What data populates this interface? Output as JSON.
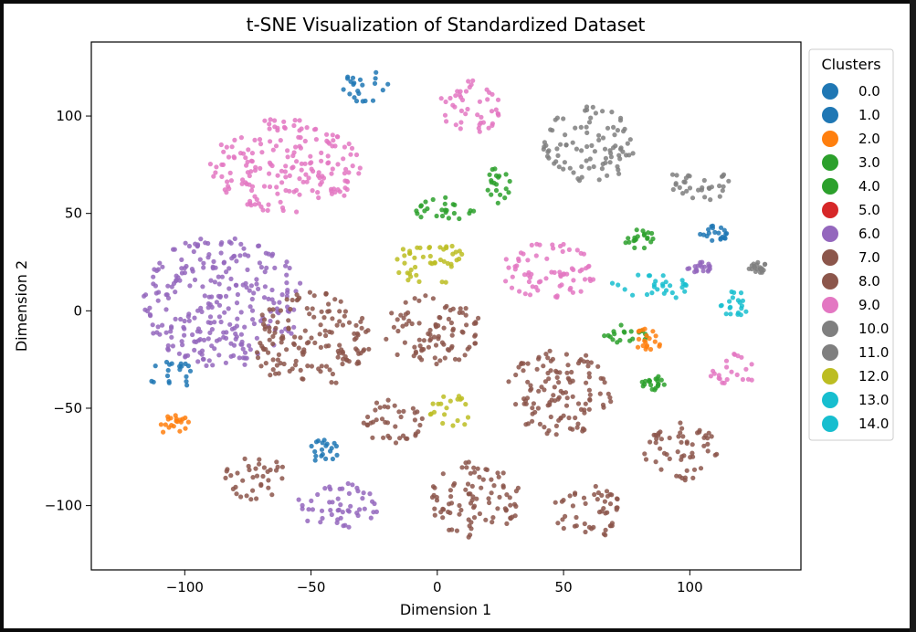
{
  "chart_data": {
    "type": "scatter",
    "title": "t-SNE Visualization of Standardized Dataset",
    "xlabel": "Dimension 1",
    "ylabel": "Dimension 2",
    "xlim": [
      -137,
      144
    ],
    "ylim": [
      -133,
      138
    ],
    "xticks": [
      -100,
      -50,
      0,
      50,
      100
    ],
    "yticks": [
      -100,
      -50,
      0,
      50,
      100
    ],
    "xtick_labels": [
      "−100",
      "−50",
      "0",
      "50",
      "100"
    ],
    "ytick_labels": [
      "−100",
      "−50",
      "0",
      "50",
      "100"
    ],
    "grid": false,
    "legend": {
      "title": "Clusters",
      "placement": "outside-right",
      "entries": [
        {
          "label": "0.0",
          "color": "#1f77b4"
        },
        {
          "label": "1.0",
          "color": "#1f77b4"
        },
        {
          "label": "2.0",
          "color": "#ff7f0e"
        },
        {
          "label": "3.0",
          "color": "#2ca02c"
        },
        {
          "label": "4.0",
          "color": "#2ca02c"
        },
        {
          "label": "5.0",
          "color": "#d62728"
        },
        {
          "label": "6.0",
          "color": "#9467bd"
        },
        {
          "label": "7.0",
          "color": "#8c564b"
        },
        {
          "label": "8.0",
          "color": "#8c564b"
        },
        {
          "label": "9.0",
          "color": "#e377c2"
        },
        {
          "label": "10.0",
          "color": "#7f7f7f"
        },
        {
          "label": "11.0",
          "color": "#7f7f7f"
        },
        {
          "label": "12.0",
          "color": "#bcbd22"
        },
        {
          "label": "13.0",
          "color": "#17becf"
        },
        {
          "label": "14.0",
          "color": "#17becf"
        }
      ]
    },
    "clusters": [
      {
        "label": "6.0",
        "center": [
          -85,
          5
        ],
        "spread": [
          32,
          34
        ],
        "color": "#9467bd"
      },
      {
        "label": "9.0",
        "center": [
          -60,
          75
        ],
        "spread": [
          30,
          25
        ],
        "color": "#e377c2"
      },
      {
        "label": "8.0",
        "center": [
          -50,
          -15
        ],
        "spread": [
          24,
          25
        ],
        "color": "#8c564b"
      },
      {
        "label": "7.0",
        "center": [
          -2,
          -10
        ],
        "spread": [
          20,
          18
        ],
        "color": "#8c564b"
      },
      {
        "label": "7.0",
        "center": [
          48,
          -42
        ],
        "spread": [
          22,
          22
        ],
        "color": "#8c564b"
      },
      {
        "label": "8.0",
        "center": [
          15,
          -97
        ],
        "spread": [
          18,
          20
        ],
        "color": "#8c564b"
      },
      {
        "label": "8.0",
        "center": [
          -18,
          -57
        ],
        "spread": [
          13,
          12
        ],
        "color": "#8c564b"
      },
      {
        "label": "7.0",
        "center": [
          60,
          -103
        ],
        "spread": [
          14,
          14
        ],
        "color": "#8c564b"
      },
      {
        "label": "8.0",
        "center": [
          97,
          -72
        ],
        "spread": [
          15,
          15
        ],
        "color": "#8c564b"
      },
      {
        "label": "8.0",
        "center": [
          -72,
          -85
        ],
        "spread": [
          12,
          12
        ],
        "color": "#8c564b"
      },
      {
        "label": "6.0",
        "center": [
          -40,
          -100
        ],
        "spread": [
          17,
          12
        ],
        "color": "#9467bd"
      },
      {
        "label": "10.0",
        "center": [
          60,
          85
        ],
        "spread": [
          18,
          20
        ],
        "color": "#7f7f7f"
      },
      {
        "label": "11.0",
        "center": [
          103,
          65
        ],
        "spread": [
          14,
          9
        ],
        "color": "#7f7f7f"
      },
      {
        "label": "9.0",
        "center": [
          13,
          105
        ],
        "spread": [
          12,
          15
        ],
        "color": "#e377c2"
      },
      {
        "label": "9.0",
        "center": [
          44,
          20
        ],
        "spread": [
          19,
          15
        ],
        "color": "#e377c2"
      },
      {
        "label": "9.0",
        "center": [
          118,
          -30
        ],
        "spread": [
          11,
          8
        ],
        "color": "#e377c2"
      },
      {
        "label": "12.0",
        "center": [
          -2,
          25
        ],
        "spread": [
          15,
          12
        ],
        "color": "#bcbd22"
      },
      {
        "label": "12.0",
        "center": [
          5,
          -52
        ],
        "spread": [
          9,
          9
        ],
        "color": "#bcbd22"
      },
      {
        "label": "3.0",
        "center": [
          5,
          52
        ],
        "spread": [
          14,
          7
        ],
        "color": "#2ca02c"
      },
      {
        "label": "4.0",
        "center": [
          24,
          65
        ],
        "spread": [
          5,
          10
        ],
        "color": "#2ca02c"
      },
      {
        "label": "13.0",
        "center": [
          84,
          12
        ],
        "spread": [
          16,
          7
        ],
        "color": "#17becf"
      },
      {
        "label": "14.0",
        "center": [
          118,
          3
        ],
        "spread": [
          6,
          7
        ],
        "color": "#17becf"
      },
      {
        "label": "1.0",
        "center": [
          -105,
          -33
        ],
        "spread": [
          10,
          7
        ],
        "color": "#1f77b4"
      },
      {
        "label": "2.0",
        "center": [
          -104,
          -59
        ],
        "spread": [
          6,
          6
        ],
        "color": "#ff7f0e"
      },
      {
        "label": "0.0",
        "center": [
          -28,
          115
        ],
        "spread": [
          11,
          8
        ],
        "color": "#1f77b4"
      },
      {
        "label": "1.0",
        "center": [
          -45,
          -72
        ],
        "spread": [
          6,
          6
        ],
        "color": "#1f77b4"
      },
      {
        "label": "3.0",
        "center": [
          75,
          -12
        ],
        "spread": [
          9,
          5
        ],
        "color": "#2ca02c"
      },
      {
        "label": "2.0",
        "center": [
          83,
          -15
        ],
        "spread": [
          6,
          6
        ],
        "color": "#ff7f0e"
      },
      {
        "label": "4.0",
        "center": [
          86,
          -37
        ],
        "spread": [
          5,
          4
        ],
        "color": "#2ca02c"
      },
      {
        "label": "3.0",
        "center": [
          80,
          37
        ],
        "spread": [
          6,
          5
        ],
        "color": "#2ca02c"
      },
      {
        "label": "1.0",
        "center": [
          110,
          40
        ],
        "spread": [
          6,
          4
        ],
        "color": "#1f77b4"
      },
      {
        "label": "6.0",
        "center": [
          104,
          22
        ],
        "spread": [
          5,
          3
        ],
        "color": "#9467bd"
      },
      {
        "label": "11.0",
        "center": [
          127,
          22
        ],
        "spread": [
          4,
          3
        ],
        "color": "#7f7f7f"
      }
    ]
  }
}
